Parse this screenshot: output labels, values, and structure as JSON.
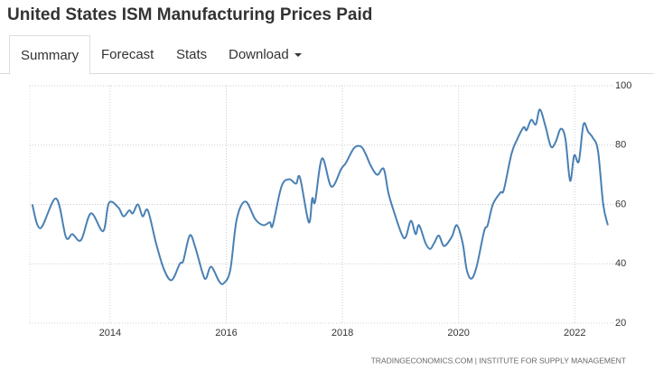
{
  "header": {
    "title": "United States ISM Manufacturing Prices Paid"
  },
  "tabs": [
    "Summary",
    "Forecast",
    "Stats",
    "Download"
  ],
  "chart_data": {
    "type": "line",
    "source": "TRADINGECONOMICS.COM  |  INSTITUTE FOR SUPPLY MANAGEMENT",
    "x": [
      2012.66,
      2012.8,
      2013.07,
      2013.24,
      2013.35,
      2013.5,
      2013.67,
      2013.88,
      2013.98,
      2014.14,
      2014.23,
      2014.33,
      2014.39,
      2014.48,
      2014.56,
      2014.65,
      2014.79,
      2014.93,
      2015.06,
      2015.2,
      2015.26,
      2015.37,
      2015.46,
      2015.59,
      2015.65,
      2015.74,
      2015.88,
      2015.96,
      2016.07,
      2016.18,
      2016.33,
      2016.5,
      2016.64,
      2016.75,
      2016.8,
      2016.95,
      2017.08,
      2017.2,
      2017.27,
      2017.42,
      2017.48,
      2017.53,
      2017.65,
      2017.81,
      2017.98,
      2018.06,
      2018.2,
      2018.32,
      2018.4,
      2018.49,
      2018.6,
      2018.71,
      2018.79,
      2018.88,
      2019.02,
      2019.09,
      2019.18,
      2019.26,
      2019.32,
      2019.43,
      2019.51,
      2019.58,
      2019.66,
      2019.75,
      2019.88,
      2019.97,
      2020.07,
      2020.14,
      2020.22,
      2020.31,
      2020.44,
      2020.5,
      2020.59,
      2020.72,
      2020.78,
      2020.91,
      2021.01,
      2021.12,
      2021.17,
      2021.25,
      2021.33,
      2021.4,
      2021.5,
      2021.59,
      2021.67,
      2021.76,
      2021.84,
      2021.92,
      2021.99,
      2022.07,
      2022.15,
      2022.23,
      2022.31,
      2022.4,
      2022.49,
      2022.57
    ],
    "series": [
      {
        "name": "Prices Paid",
        "color": "#4a80b3",
        "values": [
          60,
          52,
          62,
          49,
          50,
          48,
          57,
          51,
          60.5,
          59,
          56,
          58,
          57,
          60,
          56,
          58,
          47,
          38,
          34.5,
          40,
          41,
          49.5,
          46,
          37,
          35,
          39,
          34,
          33.5,
          38,
          55,
          61,
          55,
          53,
          54,
          53,
          66,
          68.5,
          67,
          69,
          54,
          62,
          61,
          75.5,
          66,
          72,
          74,
          79,
          79.5,
          77,
          73,
          70,
          72,
          64,
          58,
          50,
          49,
          54.5,
          50,
          53,
          47,
          45,
          47,
          49.5,
          46,
          49,
          53,
          47,
          38,
          35,
          39,
          51,
          53,
          60,
          64,
          65,
          77,
          82,
          86,
          85,
          88.5,
          87,
          92,
          86,
          79.5,
          81,
          85.5,
          82,
          68,
          76.5,
          74.5,
          87,
          84.5,
          82.5,
          78,
          60,
          53
        ]
      }
    ],
    "xlim": [
      2012.26,
      2022.68
    ],
    "ylim": [
      20,
      100
    ],
    "xticks": [
      2014,
      2016,
      2018,
      2020,
      2022
    ],
    "yticks": [
      20,
      40,
      60,
      80,
      100
    ],
    "grid": true
  }
}
